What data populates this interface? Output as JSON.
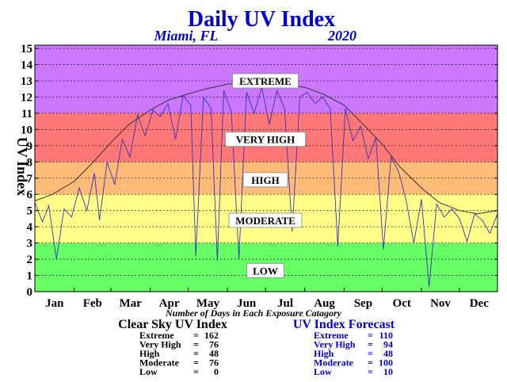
{
  "chart_data": {
    "type": "line",
    "title": "Daily UV Index",
    "subtitle_left": "Miami, FL",
    "subtitle_right": "2020",
    "ylabel": "UV Index",
    "xlabel": "Number of Days in Each Exposure Catagory",
    "ylim": [
      0,
      15
    ],
    "xlim": [
      1,
      366
    ],
    "yticks": [
      "0",
      "1",
      "2",
      "3",
      "4",
      "5",
      "6",
      "7",
      "8",
      "9",
      "10",
      "11",
      "12",
      "13",
      "14",
      "15"
    ],
    "months": [
      {
        "label": "Jan",
        "day": 1
      },
      {
        "label": "Feb",
        "day": 32
      },
      {
        "label": "Mar",
        "day": 61
      },
      {
        "label": "Apr",
        "day": 92
      },
      {
        "label": "May",
        "day": 122
      },
      {
        "label": "Jun",
        "day": 153
      },
      {
        "label": "Jul",
        "day": 183
      },
      {
        "label": "Aug",
        "day": 214
      },
      {
        "label": "Sep",
        "day": 245
      },
      {
        "label": "Oct",
        "day": 275
      },
      {
        "label": "Nov",
        "day": 306
      },
      {
        "label": "Dec",
        "day": 336
      }
    ],
    "bands": [
      {
        "label": "LOW",
        "from": 0,
        "to": 3,
        "color": "#66ff66",
        "label_y": 1.3
      },
      {
        "label": "MODERATE",
        "from": 3,
        "to": 6,
        "color": "#ffff88",
        "label_y": 4.4
      },
      {
        "label": "HIGH",
        "from": 6,
        "to": 8,
        "color": "#ffbb77",
        "label_y": 6.9
      },
      {
        "label": "VERY HIGH",
        "from": 8,
        "to": 11,
        "color": "#ff7777",
        "label_y": 9.4
      },
      {
        "label": "EXTREME",
        "from": 11,
        "to": 15.2,
        "color": "#cc77ff",
        "label_y": 13.0
      }
    ],
    "grid": true,
    "series": [
      {
        "name": "Clear Sky UV Index",
        "color": "#333333",
        "x": [
          1,
          15,
          32,
          46,
          61,
          75,
          92,
          106,
          122,
          136,
          153,
          167,
          183,
          197,
          214,
          228,
          245,
          259,
          275,
          289,
          306,
          320,
          336,
          350,
          366
        ],
        "y": [
          5.6,
          6.0,
          6.8,
          7.9,
          9.2,
          10.3,
          11.2,
          11.8,
          12.2,
          12.5,
          12.8,
          12.9,
          12.9,
          12.8,
          12.6,
          12.2,
          11.5,
          10.4,
          9.1,
          7.7,
          6.4,
          5.5,
          5.0,
          4.8,
          5.0
        ]
      },
      {
        "name": "UV Index Forecast",
        "color": "#3333bb",
        "x": [
          1,
          7,
          12,
          18,
          24,
          30,
          36,
          42,
          48,
          52,
          58,
          64,
          70,
          76,
          82,
          88,
          94,
          100,
          106,
          112,
          118,
          124,
          128,
          134,
          140,
          145,
          150,
          156,
          162,
          168,
          174,
          180,
          186,
          192,
          198,
          204,
          210,
          216,
          222,
          228,
          234,
          240,
          246,
          252,
          258,
          264,
          270,
          276,
          282,
          288,
          294,
          300,
          306,
          312,
          318,
          324,
          330,
          336,
          342,
          348,
          354,
          360,
          366
        ],
        "y": [
          5.5,
          4.3,
          5.3,
          2.0,
          5.1,
          4.6,
          6.4,
          5.0,
          7.3,
          4.4,
          8.0,
          6.6,
          9.4,
          8.3,
          10.9,
          9.6,
          11.2,
          10.8,
          11.6,
          9.4,
          12.1,
          11.5,
          2.2,
          12.0,
          11.3,
          1.9,
          12.4,
          11.1,
          2.0,
          12.3,
          11.0,
          12.6,
          10.3,
          12.4,
          11.3,
          3.7,
          12.0,
          12.3,
          11.6,
          12.0,
          11.3,
          2.8,
          11.3,
          9.3,
          10.2,
          8.2,
          9.5,
          2.6,
          8.3,
          7.4,
          5.6,
          3.0,
          5.7,
          0.3,
          5.4,
          4.6,
          5.1,
          4.5,
          3.1,
          4.8,
          4.4,
          3.6,
          4.8
        ]
      }
    ],
    "stats": {
      "clear_sky": {
        "title": "Clear Sky UV Index",
        "rows": [
          {
            "label": "Extreme",
            "value": "162"
          },
          {
            "label": "Very High",
            "value": "76"
          },
          {
            "label": "High",
            "value": "48"
          },
          {
            "label": "Moderate",
            "value": "76"
          },
          {
            "label": "Low",
            "value": "0"
          }
        ]
      },
      "forecast": {
        "title": "UV Index Forecast",
        "rows": [
          {
            "label": "Extreme",
            "value": "110"
          },
          {
            "label": "Very High",
            "value": "94"
          },
          {
            "label": "High",
            "value": "48"
          },
          {
            "label": "Moderate",
            "value": "100"
          },
          {
            "label": "Low",
            "value": "10"
          }
        ]
      }
    }
  }
}
